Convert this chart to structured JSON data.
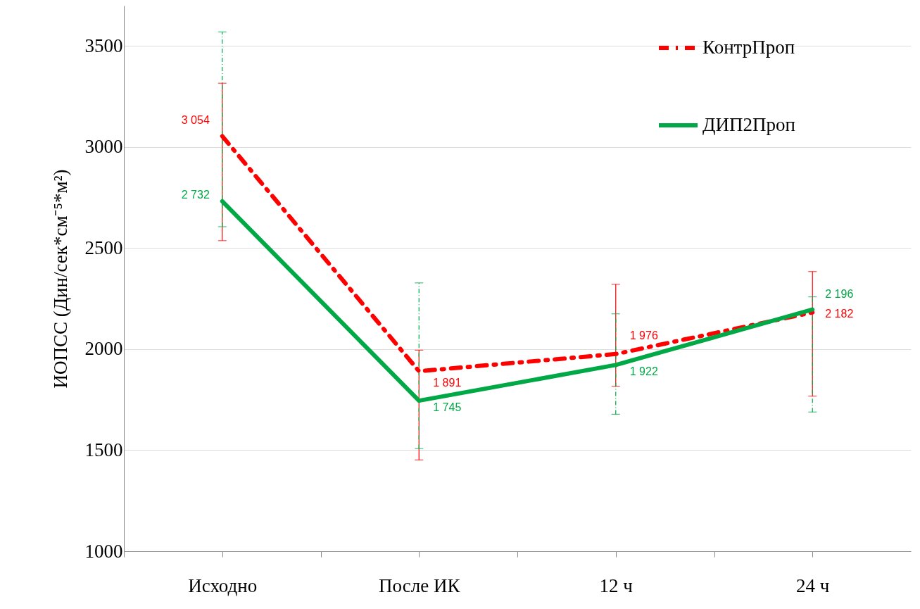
{
  "chart_data": {
    "type": "line",
    "ylabel": "ИОПСС (Дин/сек*см⁻⁵*м²)",
    "categories": [
      "Исходно",
      "После ИК",
      "12 ч",
      "24 ч"
    ],
    "ylim": [
      1000,
      3700
    ],
    "yticks": [
      1000,
      1500,
      2000,
      2500,
      3000,
      3500
    ],
    "grid": "y",
    "legend": "top right",
    "marker": "none",
    "series": [
      {
        "name": "КонтрПроп",
        "color": "#ff0000",
        "line_style": "dashed",
        "values": [
          3054,
          1891,
          1976,
          2182
        ],
        "value_labels": [
          "3 054",
          "1 891",
          "1 976",
          "2 182"
        ],
        "errors": [
          [
            2537,
            3316
          ],
          [
            1452,
            1995
          ],
          [
            1817,
            2321
          ],
          [
            1768,
            2384
          ]
        ]
      },
      {
        "name": "ДИП2Проп",
        "color": "#00a846",
        "line_style": "solid",
        "values": [
          2732,
          1745,
          1922,
          2196
        ],
        "value_labels": [
          "2 732",
          "1 745",
          "1 922",
          "2 196"
        ],
        "errors": [
          [
            2606,
            3570
          ],
          [
            1508,
            2328
          ],
          [
            1678,
            2175
          ],
          [
            1689,
            2259
          ]
        ]
      }
    ]
  }
}
